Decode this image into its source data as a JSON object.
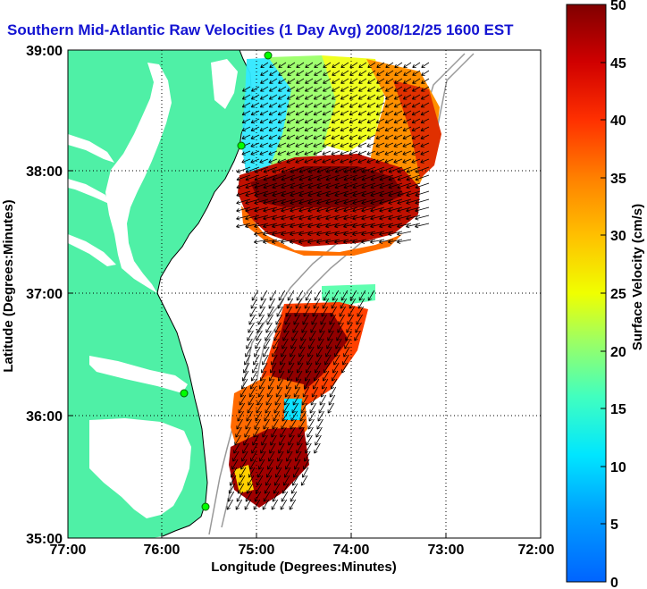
{
  "figure": {
    "title": "Southern Mid-Atlantic Raw Velocities (1 Day Avg) 2008/12/25 1600 EST",
    "xlabel": "Longitude (Degrees:Minutes)",
    "ylabel": "Latitude (Degrees:Minutes)",
    "x_ticks": [
      "77:00",
      "76:00",
      "75:00",
      "74:00",
      "73:00",
      "72:00"
    ],
    "y_ticks": [
      "39:00",
      "38:00",
      "37:00",
      "36:00",
      "35:00"
    ],
    "colorbar": {
      "label": "Surface Velocity (cm/s)",
      "ticks": [
        "0",
        "5",
        "10",
        "15",
        "20",
        "25",
        "30",
        "35",
        "40",
        "45",
        "50"
      ],
      "range": [
        0,
        50
      ]
    },
    "colors": {
      "land": "#4ff0a6",
      "title": "#1414d2",
      "station": "#00ff00"
    },
    "layers": [
      "land",
      "coastline",
      "bathymetry-contours",
      "velocity-field",
      "current-vectors",
      "stations",
      "grid"
    ]
  }
}
